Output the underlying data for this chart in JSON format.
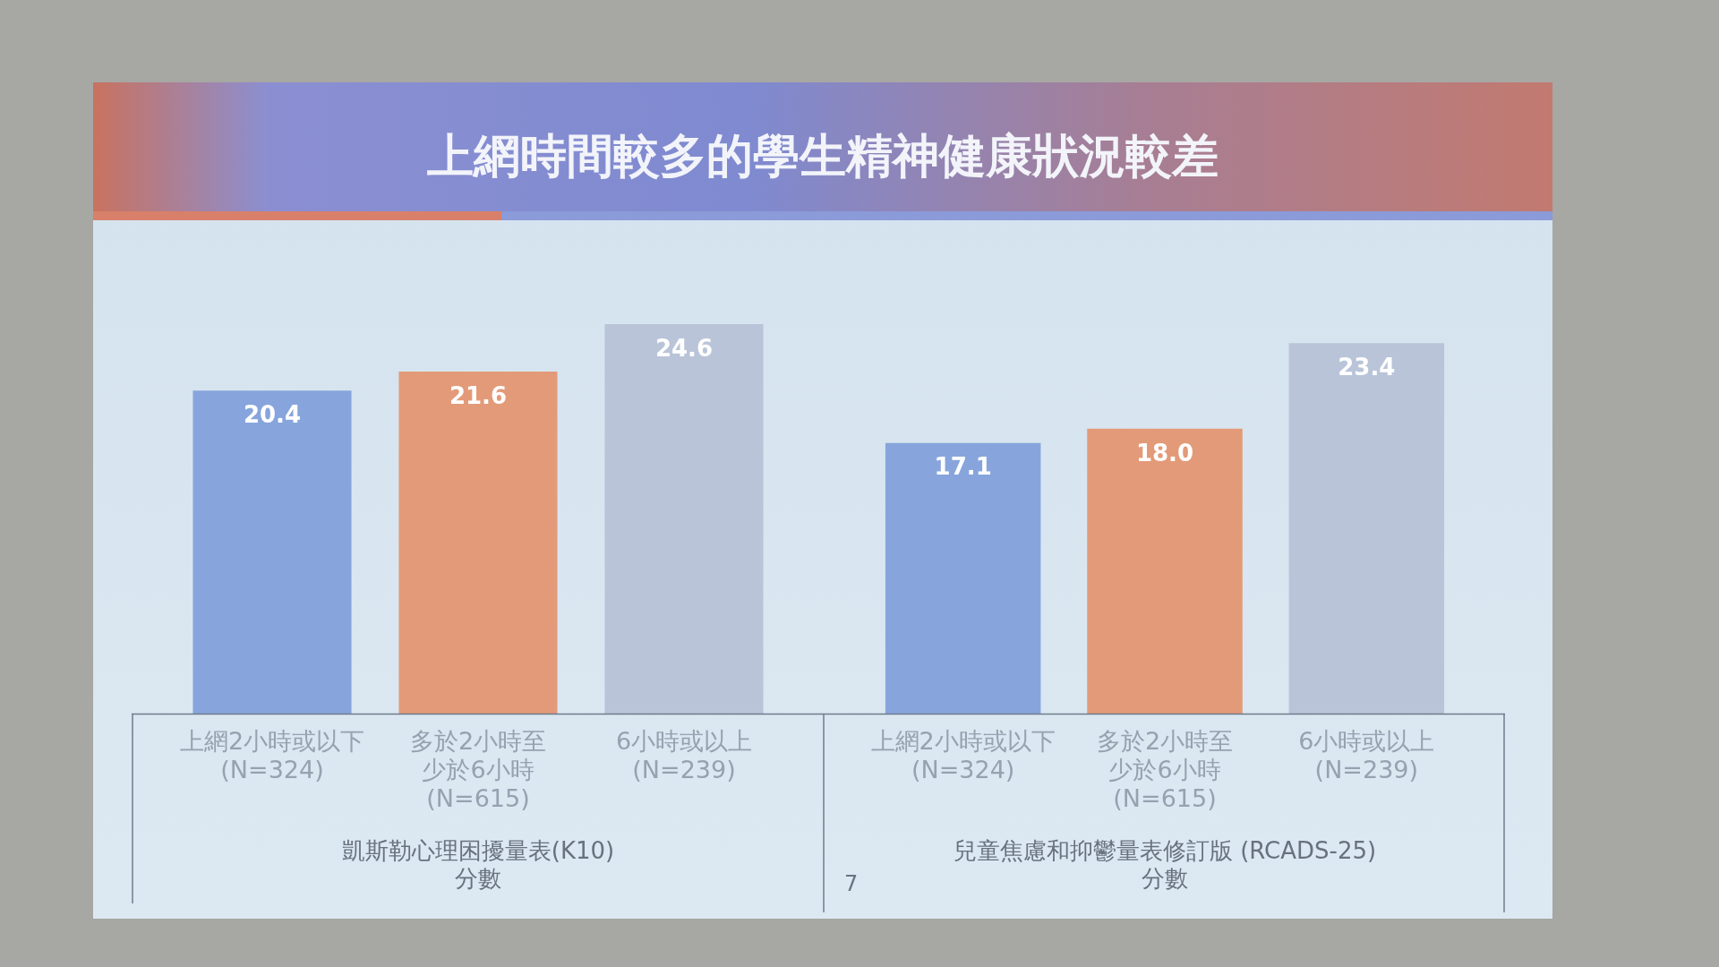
{
  "chart_data": [
    {
      "type": "bar",
      "title": "上網時間較多的學生精神健康狀況較差",
      "categories": [
        "上網2小時或以下\n(N=324)",
        "多於2小時至少於6小時\n(N=615)",
        "6小時或以上\n(N=239)"
      ],
      "values": [
        20.4,
        21.6,
        24.6
      ],
      "value_labels": [
        "20.4",
        "21.6",
        "24.6"
      ],
      "colors": [
        "#87a5dc",
        "#e39a78",
        "#b9c4d9"
      ],
      "xlabel": "凱斯勒心理困擾量表(K10)\n分數"
    },
    {
      "type": "bar",
      "categories": [
        "上網2小時或以下\n(N=324)",
        "多於2小時至少於6小時\n(N=615)",
        "6小時或以上\n(N=239)"
      ],
      "values": [
        17.1,
        18.0,
        23.4
      ],
      "value_labels": [
        "17.1",
        "18.0",
        "23.4"
      ],
      "colors": [
        "#87a5dc",
        "#e39a78",
        "#b9c4d9"
      ],
      "xlabel": "兒童焦慮和抑鬱量表修訂版 (RCADS-25)\n分數",
      "annotations": [
        "7"
      ]
    }
  ]
}
